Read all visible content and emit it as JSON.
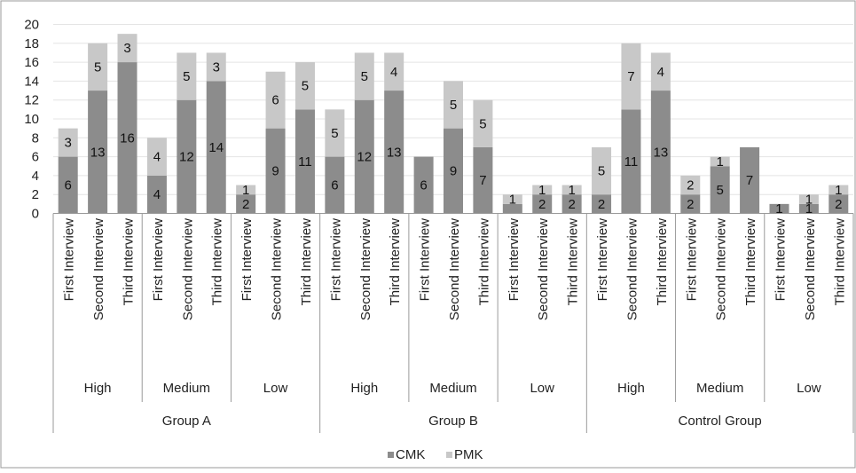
{
  "chart_data": {
    "type": "bar",
    "stacked": true,
    "ylim": [
      0,
      20
    ],
    "y_ticks": [
      0,
      2,
      4,
      6,
      8,
      10,
      12,
      14,
      16,
      18,
      20
    ],
    "grid": true,
    "legend_position": "bottom",
    "categories": [
      "First Interview",
      "Second Interview",
      "Third Interview",
      "First Interview",
      "Second Interview",
      "Third Interview",
      "First Interview",
      "Second Interview",
      "Third Interview",
      "First Interview",
      "Second Interview",
      "Third Interview",
      "First Interview",
      "Second Interview",
      "Third Interview",
      "First Interview",
      "Second Interview",
      "Third Interview",
      "First Interview",
      "Second Interview",
      "Third Interview",
      "First Interview",
      "Second Interview",
      "Third Interview",
      "First Interview",
      "Second Interview",
      "Third Interview"
    ],
    "levels": [
      {
        "label": "High",
        "group": "Group A"
      },
      {
        "label": "Medium",
        "group": "Group A"
      },
      {
        "label": "Low",
        "group": "Group A"
      },
      {
        "label": "High",
        "group": "Group B"
      },
      {
        "label": "Medium",
        "group": "Group B"
      },
      {
        "label": "Low",
        "group": "Group B"
      },
      {
        "label": "High",
        "group": "Control Group"
      },
      {
        "label": "Medium",
        "group": "Control Group"
      },
      {
        "label": "Low",
        "group": "Control Group"
      }
    ],
    "groups": [
      "Group A",
      "Group B",
      "Control Group"
    ],
    "series": [
      {
        "name": "CMK",
        "color": "#8c8c8c",
        "values": [
          6,
          13,
          16,
          4,
          12,
          14,
          2,
          9,
          11,
          6,
          12,
          13,
          6,
          9,
          7,
          1,
          2,
          2,
          2,
          11,
          13,
          2,
          5,
          7,
          1,
          1,
          2
        ],
        "labels": [
          "6",
          "13",
          "16",
          "4",
          "12",
          "14",
          "2",
          "9",
          "11",
          "6",
          "12",
          "13",
          "6",
          "9",
          "7",
          "",
          "2",
          "2",
          "2",
          "11",
          "13",
          "2",
          "5",
          "7",
          "1",
          "1",
          "2"
        ]
      },
      {
        "name": "PMK",
        "color": "#c8c8c8",
        "values": [
          3,
          5,
          3,
          4,
          5,
          3,
          1,
          6,
          5,
          5,
          5,
          4,
          0,
          5,
          5,
          1,
          1,
          1,
          5,
          7,
          4,
          2,
          1,
          0,
          0,
          1,
          1
        ],
        "labels": [
          "3",
          "5",
          "3",
          "4",
          "5",
          "3",
          "1",
          "6",
          "5",
          "5",
          "5",
          "4",
          "",
          "5",
          "5",
          "1",
          "1",
          "1",
          "5",
          "7",
          "4",
          "2",
          "1",
          "",
          "",
          "1",
          "1"
        ]
      }
    ]
  }
}
